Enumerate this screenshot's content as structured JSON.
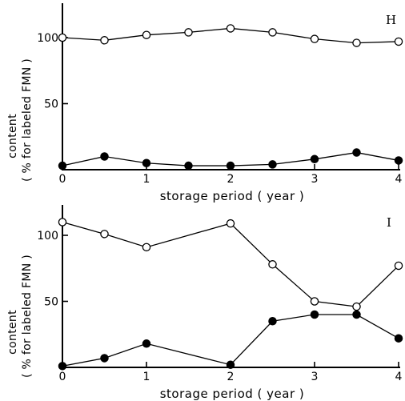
{
  "chart_data": [
    {
      "type": "line",
      "panel_label": "H",
      "xlabel": "storage period ( year )",
      "ylabel_line1": "content",
      "ylabel_line2": "( % for labeled FMN )",
      "xlim": [
        0,
        4
      ],
      "ylim": [
        0,
        120
      ],
      "xticks": [
        0,
        1,
        2,
        3,
        4
      ],
      "yticks": [
        50,
        100
      ],
      "series": [
        {
          "marker": "open-circle",
          "x": [
            0,
            0.5,
            1,
            1.5,
            2,
            2.5,
            3,
            3.5,
            4
          ],
          "y": [
            100,
            98,
            102,
            104,
            107,
            104,
            99,
            96,
            97
          ]
        },
        {
          "marker": "filled-circle",
          "x": [
            0,
            0.5,
            1,
            1.5,
            2,
            2.5,
            3,
            3.5,
            4
          ],
          "y": [
            3,
            10,
            5,
            3,
            3,
            4,
            8,
            13,
            7
          ]
        }
      ]
    },
    {
      "type": "line",
      "panel_label": "I",
      "xlabel": "storage period ( year )",
      "ylabel_line1": "content",
      "ylabel_line2": "( % for labeled FMN )",
      "xlim": [
        0,
        4
      ],
      "ylim": [
        0,
        120
      ],
      "xticks": [
        0,
        1,
        2,
        3,
        4
      ],
      "yticks": [
        50,
        100
      ],
      "series": [
        {
          "marker": "open-circle",
          "x": [
            0,
            0.5,
            1,
            2,
            2.5,
            3,
            3.5,
            4
          ],
          "y": [
            110,
            101,
            91,
            109,
            78,
            50,
            46,
            77
          ]
        },
        {
          "marker": "filled-circle",
          "x": [
            0,
            0.5,
            1,
            2,
            2.5,
            3,
            3.5,
            4
          ],
          "y": [
            1,
            7,
            18,
            2,
            35,
            40,
            40,
            22
          ]
        }
      ]
    }
  ]
}
